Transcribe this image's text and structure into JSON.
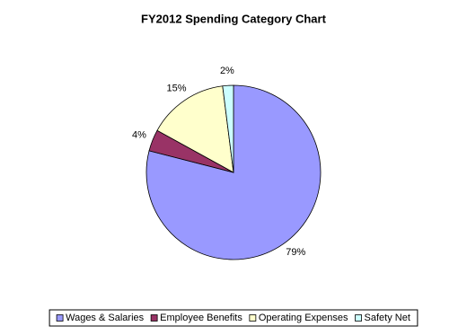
{
  "chart_data": {
    "type": "pie",
    "title": "FY2012 Spending Category Chart",
    "categories": [
      "Wages & Salaries",
      "Employee Benefits",
      "Operating Expenses",
      "Safety Net"
    ],
    "values": [
      79,
      4,
      15,
      2
    ],
    "value_labels": [
      "79%",
      "4%",
      "15%",
      "2%"
    ],
    "colors": [
      "#9999ff",
      "#993366",
      "#ffffcc",
      "#ccffff"
    ],
    "legend": "bottom"
  }
}
